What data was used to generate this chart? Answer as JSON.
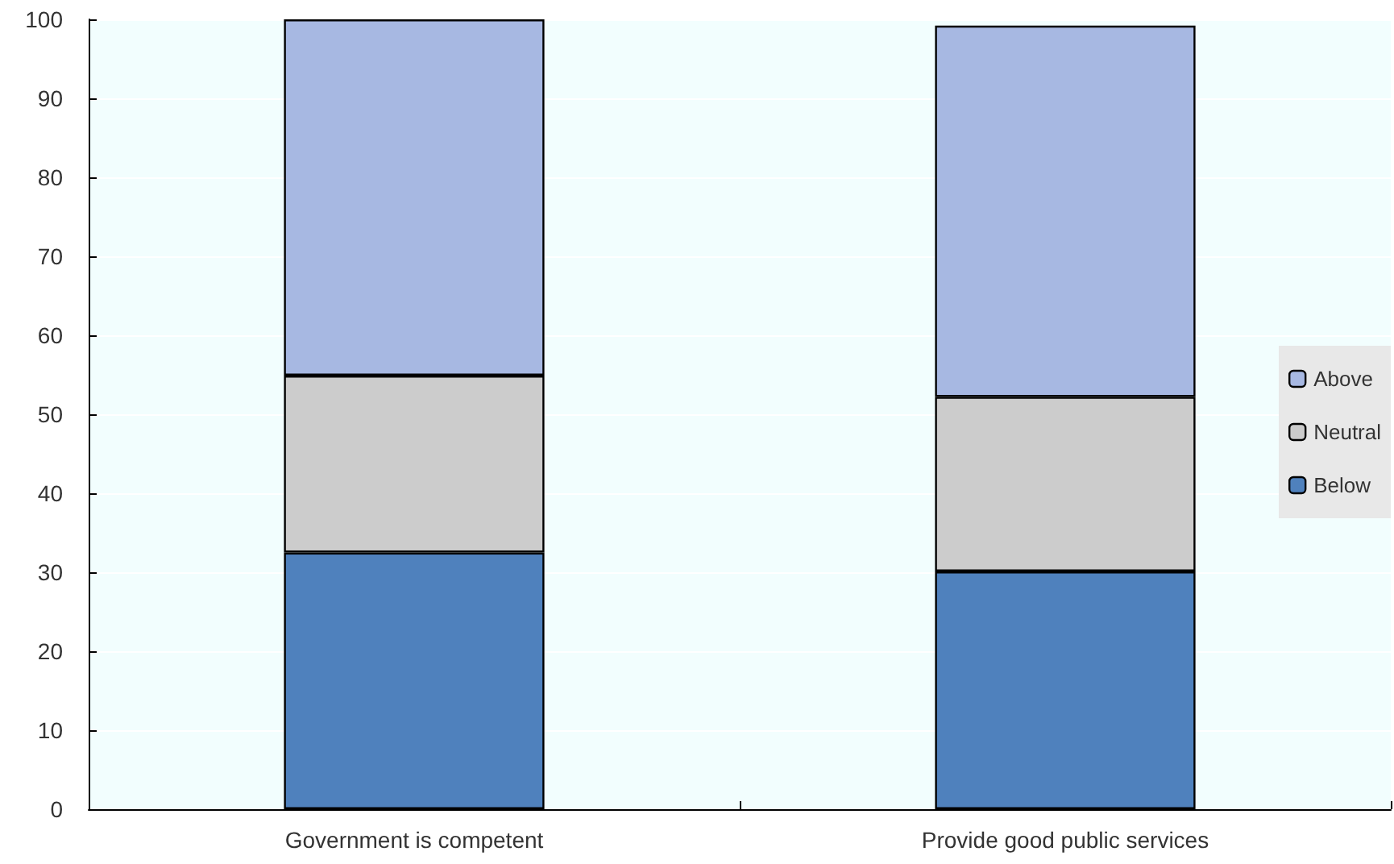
{
  "chart_data": {
    "type": "bar",
    "stacked": true,
    "categories": [
      "Government is competent",
      "Provide good public services"
    ],
    "series": [
      {
        "name": "Below",
        "color": "#4f81bd",
        "values": [
          32.5,
          30.1
        ]
      },
      {
        "name": "Neutral",
        "color": "#cccccc",
        "values": [
          22.4,
          22.1
        ]
      },
      {
        "name": "Above",
        "color": "#a7b8e2",
        "values": [
          45.1,
          47.0
        ]
      }
    ],
    "ylim": [
      0,
      100
    ],
    "yticks": [
      0,
      10,
      20,
      30,
      40,
      50,
      60,
      70,
      80,
      90,
      100
    ],
    "grid": "y",
    "legend": "right"
  }
}
